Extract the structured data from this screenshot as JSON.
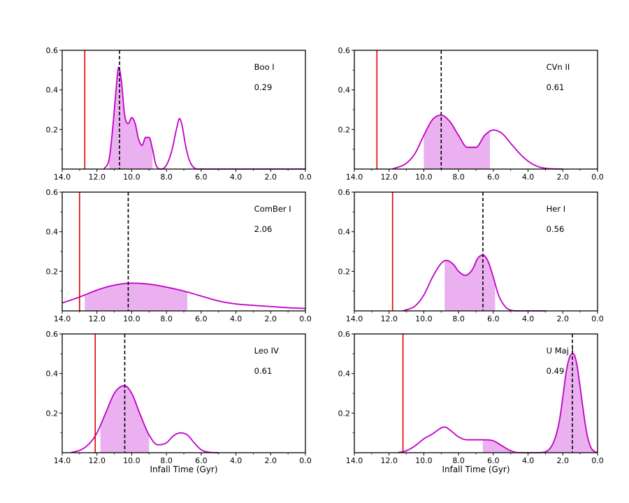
{
  "xlabel": "Infall Time (Gyr)",
  "chart_data": [
    {
      "type": "area",
      "title": "Boo I",
      "value_label": "0.29",
      "xlim": [
        14,
        0
      ],
      "ylim": [
        0,
        0.6
      ],
      "xticks": [
        14,
        12,
        10,
        8,
        6,
        4,
        2,
        0
      ],
      "xtick_labels": [
        "14.0",
        "12.0",
        "10.0",
        "8.0",
        "6.0",
        "4.0",
        "2.0",
        "0.0"
      ],
      "yticks": [
        0.2,
        0.4,
        0.6
      ],
      "ytick_labels": [
        "0.2",
        "0.4",
        "0.6"
      ],
      "curve": {
        "x": [
          11.6,
          11.3,
          11.1,
          10.9,
          10.75,
          10.6,
          10.4,
          10.2,
          10.0,
          9.8,
          9.6,
          9.4,
          9.2,
          9.0,
          8.8,
          8.6,
          8.3,
          8.0,
          7.7,
          7.4,
          7.25,
          7.1,
          6.9,
          6.7,
          6.5,
          6.2,
          6.0,
          5.0,
          3.0,
          0.0
        ],
        "y": [
          0.0,
          0.05,
          0.2,
          0.4,
          0.515,
          0.45,
          0.27,
          0.23,
          0.26,
          0.23,
          0.15,
          0.12,
          0.16,
          0.16,
          0.1,
          0.02,
          0.0,
          0.02,
          0.09,
          0.21,
          0.255,
          0.22,
          0.12,
          0.05,
          0.015,
          0.0,
          0.0,
          0.0,
          0.0,
          0.0
        ]
      },
      "shade_range": [
        11.3,
        8.8
      ],
      "red_line": 12.7,
      "dashed_line": 10.7
    },
    {
      "type": "area",
      "title": "CVn II",
      "value_label": "0.61",
      "xlim": [
        14,
        0
      ],
      "ylim": [
        0,
        0.6
      ],
      "xticks": [
        14,
        12,
        10,
        8,
        6,
        4,
        2,
        0
      ],
      "xtick_labels": [
        "14.0",
        "12.0",
        "10.0",
        "8.0",
        "6.0",
        "4.0",
        "2.0",
        "0.0"
      ],
      "yticks": [
        0.2,
        0.4,
        0.6
      ],
      "ytick_labels": [
        "0.2",
        "0.4",
        "0.6"
      ],
      "curve": {
        "x": [
          11.8,
          11.0,
          10.5,
          10.0,
          9.5,
          9.0,
          8.5,
          8.0,
          7.5,
          7.0,
          6.5,
          6.0,
          5.5,
          5.0,
          4.5,
          4.0,
          3.5,
          3.0,
          2.5,
          2.0
        ],
        "y": [
          0.0,
          0.03,
          0.08,
          0.17,
          0.25,
          0.272,
          0.24,
          0.17,
          0.11,
          0.11,
          0.17,
          0.197,
          0.18,
          0.13,
          0.08,
          0.04,
          0.015,
          0.004,
          0.001,
          0.0
        ]
      },
      "shade_range": [
        10.0,
        6.2
      ],
      "red_line": 12.7,
      "dashed_line": 9.0
    },
    {
      "type": "area",
      "title": "ComBer I",
      "value_label": "2.06",
      "xlim": [
        14,
        0
      ],
      "ylim": [
        0,
        0.6
      ],
      "xticks": [
        14,
        12,
        10,
        8,
        6,
        4,
        2,
        0
      ],
      "xtick_labels": [
        "14.0",
        "12.0",
        "10.0",
        "8.0",
        "6.0",
        "4.0",
        "2.0",
        "0.0"
      ],
      "yticks": [
        0.2,
        0.4,
        0.6
      ],
      "ytick_labels": [
        "0.2",
        "0.4",
        "0.6"
      ],
      "curve": {
        "x": [
          14.0,
          13.0,
          12.0,
          11.0,
          10.0,
          9.0,
          8.0,
          7.0,
          6.0,
          5.0,
          4.0,
          3.0,
          2.0,
          1.0,
          0.0
        ],
        "y": [
          0.04,
          0.07,
          0.105,
          0.13,
          0.14,
          0.135,
          0.12,
          0.1,
          0.075,
          0.05,
          0.035,
          0.028,
          0.022,
          0.016,
          0.012
        ]
      },
      "shade_range": [
        12.7,
        6.8
      ],
      "red_line": 13.0,
      "dashed_line": 10.2
    },
    {
      "type": "area",
      "title": "Her I",
      "value_label": "0.56",
      "xlim": [
        14,
        0
      ],
      "ylim": [
        0,
        0.6
      ],
      "xticks": [
        14,
        12,
        10,
        8,
        6,
        4,
        2,
        0
      ],
      "xtick_labels": [
        "14.0",
        "12.0",
        "10.0",
        "8.0",
        "6.0",
        "4.0",
        "2.0",
        "0.0"
      ],
      "yticks": [
        0.2,
        0.4,
        0.6
      ],
      "ytick_labels": [
        "0.2",
        "0.4",
        "0.6"
      ],
      "curve": {
        "x": [
          11.2,
          10.5,
          10.0,
          9.5,
          9.0,
          8.7,
          8.3,
          8.0,
          7.6,
          7.2,
          6.9,
          6.6,
          6.3,
          6.0,
          5.7,
          5.3,
          5.0,
          4.5,
          4.0,
          3.0
        ],
        "y": [
          0.0,
          0.025,
          0.08,
          0.17,
          0.24,
          0.255,
          0.235,
          0.2,
          0.18,
          0.21,
          0.265,
          0.282,
          0.25,
          0.17,
          0.08,
          0.02,
          0.004,
          0.0,
          0.0,
          0.0
        ]
      },
      "shade_range": [
        8.8,
        5.9
      ],
      "red_line": 11.8,
      "dashed_line": 6.6
    },
    {
      "type": "area",
      "title": "Leo IV",
      "value_label": "0.61",
      "xlim": [
        14,
        0
      ],
      "ylim": [
        0,
        0.6
      ],
      "xticks": [
        14,
        12,
        10,
        8,
        6,
        4,
        2,
        0
      ],
      "xtick_labels": [
        "14.0",
        "12.0",
        "10.0",
        "8.0",
        "6.0",
        "4.0",
        "2.0",
        "0.0"
      ],
      "yticks": [
        0.2,
        0.4,
        0.6
      ],
      "ytick_labels": [
        "0.2",
        "0.4",
        "0.6"
      ],
      "curve": {
        "x": [
          13.5,
          12.8,
          12.3,
          12.0,
          11.5,
          11.0,
          10.6,
          10.4,
          10.0,
          9.5,
          9.0,
          8.5,
          8.0,
          7.6,
          7.2,
          6.8,
          6.4,
          6.0,
          5.5,
          5.0
        ],
        "y": [
          0.0,
          0.02,
          0.06,
          0.1,
          0.2,
          0.3,
          0.335,
          0.338,
          0.3,
          0.19,
          0.09,
          0.04,
          0.05,
          0.085,
          0.1,
          0.09,
          0.05,
          0.015,
          0.002,
          0.0
        ]
      },
      "shade_range": [
        11.8,
        9.0
      ],
      "red_line": 12.1,
      "dashed_line": 10.4
    },
    {
      "type": "area",
      "title": "U Maj I",
      "value_label": "0.49",
      "xlim": [
        14,
        0
      ],
      "ylim": [
        0,
        0.6
      ],
      "xticks": [
        14,
        12,
        10,
        8,
        6,
        4,
        2,
        0
      ],
      "xtick_labels": [
        "14.0",
        "12.0",
        "10.0",
        "8.0",
        "6.0",
        "4.0",
        "2.0",
        "0.0"
      ],
      "yticks": [
        0.2,
        0.4,
        0.6
      ],
      "ytick_labels": [
        "0.2",
        "0.4",
        "0.6"
      ],
      "curve": {
        "x": [
          11.5,
          11.0,
          10.5,
          10.0,
          9.5,
          9.0,
          8.8,
          8.5,
          8.0,
          7.5,
          7.0,
          6.5,
          6.0,
          5.5,
          5.0,
          4.5,
          4.0,
          3.5,
          3.0,
          2.5,
          2.2,
          2.0,
          1.8,
          1.6,
          1.4,
          1.2,
          1.0,
          0.8,
          0.6,
          0.4,
          0.2,
          0.0
        ],
        "y": [
          0.0,
          0.01,
          0.035,
          0.07,
          0.095,
          0.125,
          0.13,
          0.115,
          0.08,
          0.065,
          0.065,
          0.065,
          0.06,
          0.035,
          0.01,
          0.0,
          0.0,
          0.0,
          0.005,
          0.06,
          0.16,
          0.28,
          0.41,
          0.485,
          0.5,
          0.45,
          0.33,
          0.2,
          0.09,
          0.03,
          0.008,
          0.0
        ]
      },
      "shade_range": [
        6.6,
        0.0
      ],
      "red_line": 11.2,
      "dashed_line": 1.45
    }
  ]
}
